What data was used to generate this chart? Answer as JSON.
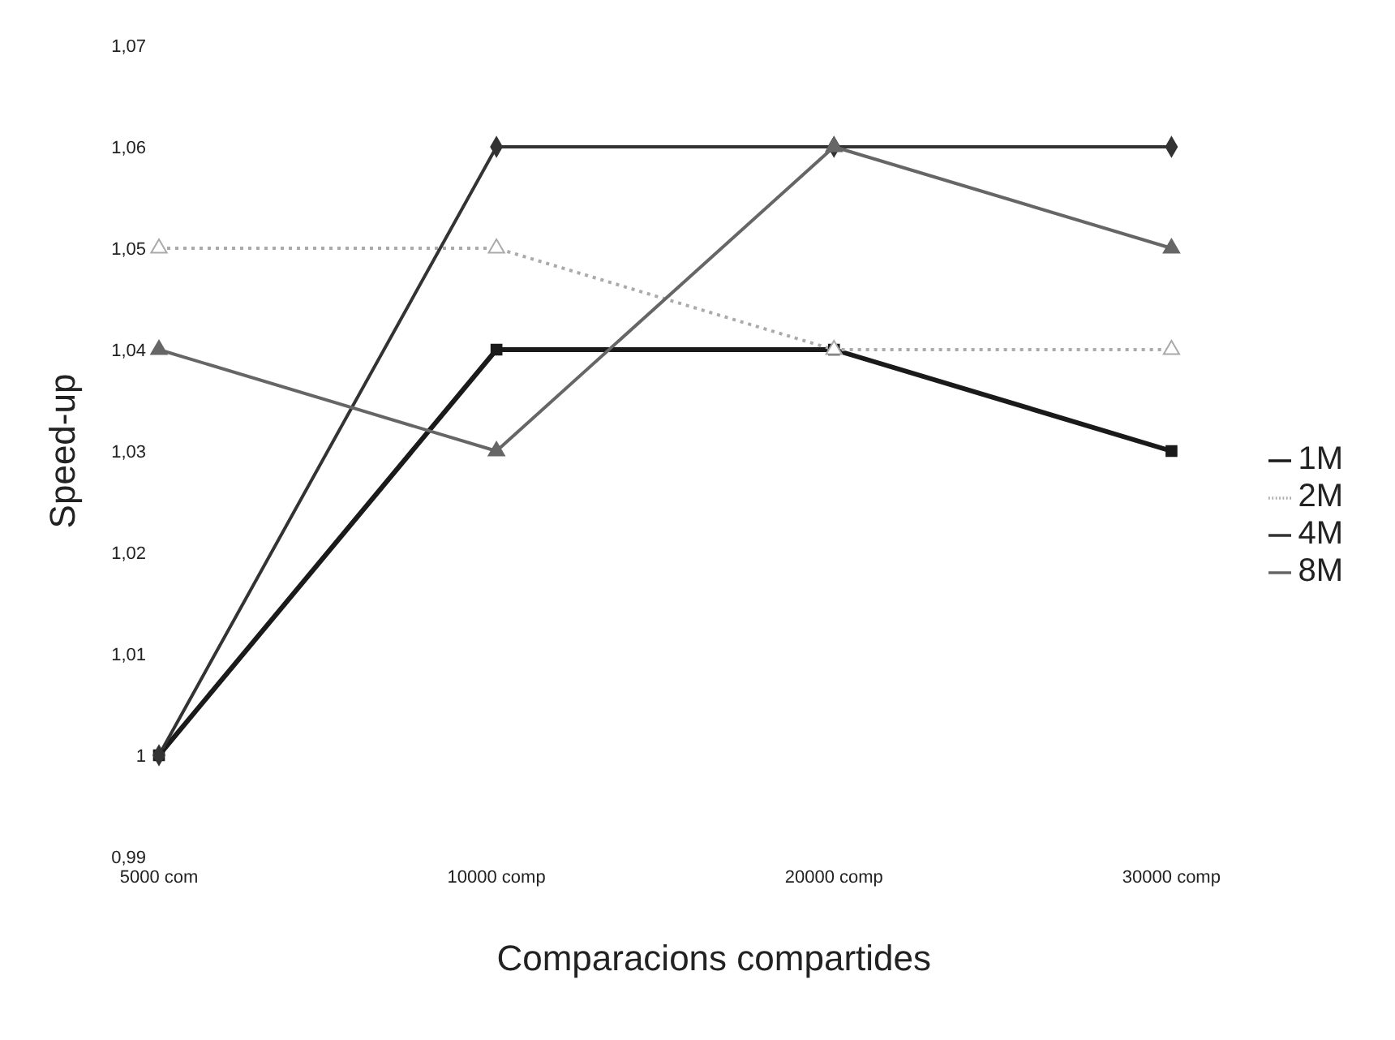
{
  "chart_data": {
    "type": "line",
    "xlabel": "Comparacions compartides",
    "ylabel": "Speed-up",
    "categories": [
      "5000 com",
      "10000 comp",
      "20000 comp",
      "30000 comp"
    ],
    "series": [
      {
        "name": "1M",
        "color": "#1a1a1a",
        "values": [
          1,
          1.04,
          1.04,
          1.03
        ],
        "marker": "square",
        "line_style": "solid"
      },
      {
        "name": "2M",
        "color": "#aaaaaa",
        "values": [
          1.05,
          1.05,
          1.04,
          1.04
        ],
        "marker": "triangle",
        "line_style": "dotted"
      },
      {
        "name": "4M",
        "color": "#333333",
        "values": [
          1,
          1.06,
          1.06,
          1.06
        ],
        "marker": "diamond",
        "line_style": "solid"
      },
      {
        "name": "8M",
        "color": "#666666",
        "values": [
          1.04,
          1.03,
          1.06,
          1.05
        ],
        "marker": "triangle",
        "line_style": "solid"
      }
    ],
    "ylim": [
      0.99,
      1.07
    ],
    "yticks": [
      {
        "value": 0.99,
        "label": "0,99"
      },
      1,
      {
        "value": 1.01,
        "label": "1,01"
      },
      {
        "value": 1.02,
        "label": "1,02"
      },
      {
        "value": 1.03,
        "label": "1,03"
      },
      {
        "value": 1.04,
        "label": "1,04"
      },
      {
        "value": 1.05,
        "label": "1,05"
      },
      {
        "value": 1.06,
        "label": "1,06"
      },
      {
        "value": 1.07,
        "label": "1,07"
      }
    ],
    "grid": false,
    "legend": "right"
  }
}
